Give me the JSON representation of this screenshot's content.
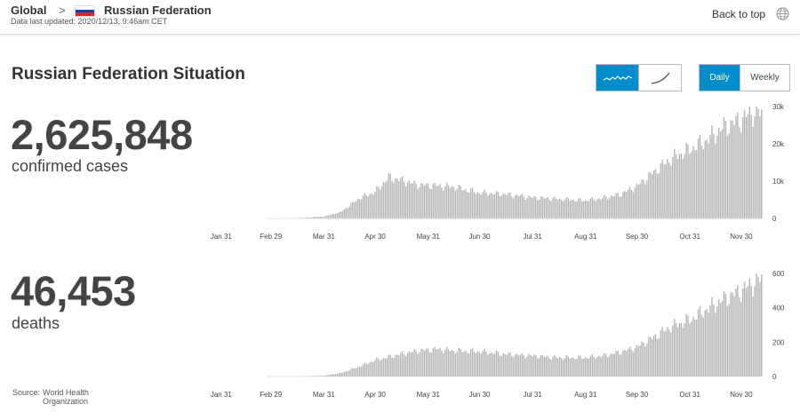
{
  "header": {
    "breadcrumb_root": "Global",
    "breadcrumb_sep": ">",
    "country": "Russian Federation",
    "updated": "Data last updated: 2020/12/13, 9:46am CET",
    "back_to_top": "Back to top",
    "flag_colors": [
      "#ffffff",
      "#1c3fa8",
      "#d52b1e"
    ]
  },
  "page_title": "Russian Federation Situation",
  "controls": {
    "chart_style": [
      {
        "icon": "wave-line-icon",
        "active": true
      },
      {
        "icon": "curve-line-icon",
        "active": false
      }
    ],
    "interval": [
      {
        "label": "Daily",
        "active": true
      },
      {
        "label": "Weekly",
        "active": false
      }
    ],
    "accent_color": "#008dc9"
  },
  "cases": {
    "value": "2,625,848",
    "label": "confirmed cases"
  },
  "deaths": {
    "value": "46,453",
    "label": "deaths"
  },
  "source": {
    "label": "Source:",
    "org": "World Health Organization"
  },
  "chart_data": [
    {
      "type": "bar",
      "x_ticks": [
        "Jan 31",
        "Feb 29",
        "Mar 31",
        "Apr 30",
        "May 31",
        "Jun 30",
        "Jul 31",
        "Aug 31",
        "Sep 30",
        "Oct 31",
        "Nov 30"
      ],
      "y_ticks": [
        "0",
        "10k",
        "20k",
        "30k"
      ],
      "ylim": [
        0,
        30000
      ],
      "bar_color": "#b3b3b3",
      "x_range": [
        "2020-01-03",
        "2020-12-12"
      ],
      "anchors": [
        [
          "2020-03-01",
          0
        ],
        [
          "2020-03-15",
          40
        ],
        [
          "2020-03-31",
          500
        ],
        [
          "2020-04-10",
          1700
        ],
        [
          "2020-04-20",
          5200
        ],
        [
          "2020-04-30",
          7100
        ],
        [
          "2020-05-08",
          11000
        ],
        [
          "2020-05-15",
          10300
        ],
        [
          "2020-05-25",
          9000
        ],
        [
          "2020-06-05",
          8800
        ],
        [
          "2020-06-15",
          8400
        ],
        [
          "2020-06-30",
          6900
        ],
        [
          "2020-07-15",
          6500
        ],
        [
          "2020-07-31",
          5600
        ],
        [
          "2020-08-15",
          5200
        ],
        [
          "2020-08-31",
          4800
        ],
        [
          "2020-09-10",
          5400
        ],
        [
          "2020-09-20",
          6400
        ],
        [
          "2020-09-30",
          8600
        ],
        [
          "2020-10-10",
          12500
        ],
        [
          "2020-10-20",
          16000
        ],
        [
          "2020-10-31",
          18500
        ],
        [
          "2020-11-10",
          21000
        ],
        [
          "2020-11-20",
          24500
        ],
        [
          "2020-11-30",
          26500
        ],
        [
          "2020-12-07",
          28500
        ],
        [
          "2020-12-12",
          28000
        ]
      ]
    },
    {
      "type": "bar",
      "x_ticks": [
        "Jan 31",
        "Feb 29",
        "Mar 31",
        "Apr 30",
        "May 31",
        "Jun 30",
        "Jul 31",
        "Aug 31",
        "Sep 30",
        "Oct 31",
        "Nov 30"
      ],
      "y_ticks": [
        "0",
        "200",
        "400",
        "600"
      ],
      "ylim": [
        0,
        600
      ],
      "bar_color": "#b3b3b3",
      "x_range": [
        "2020-01-03",
        "2020-12-12"
      ],
      "anchors": [
        [
          "2020-03-15",
          0
        ],
        [
          "2020-03-31",
          5
        ],
        [
          "2020-04-10",
          20
        ],
        [
          "2020-04-20",
          55
        ],
        [
          "2020-04-30",
          95
        ],
        [
          "2020-05-15",
          130
        ],
        [
          "2020-05-25",
          150
        ],
        [
          "2020-06-05",
          160
        ],
        [
          "2020-06-15",
          150
        ],
        [
          "2020-06-30",
          145
        ],
        [
          "2020-07-15",
          130
        ],
        [
          "2020-07-31",
          120
        ],
        [
          "2020-08-15",
          110
        ],
        [
          "2020-08-31",
          110
        ],
        [
          "2020-09-10",
          120
        ],
        [
          "2020-09-20",
          140
        ],
        [
          "2020-09-30",
          170
        ],
        [
          "2020-10-10",
          230
        ],
        [
          "2020-10-20",
          290
        ],
        [
          "2020-10-31",
          330
        ],
        [
          "2020-11-10",
          390
        ],
        [
          "2020-11-20",
          450
        ],
        [
          "2020-11-30",
          500
        ],
        [
          "2020-12-07",
          540
        ],
        [
          "2020-12-12",
          570
        ]
      ]
    }
  ]
}
